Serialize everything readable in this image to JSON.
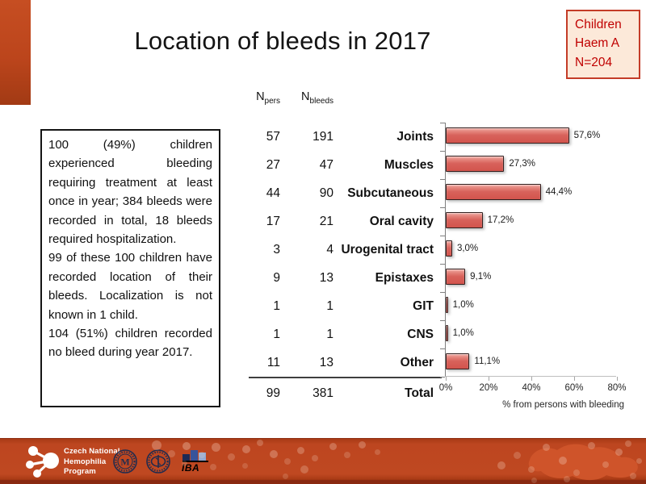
{
  "slide": {
    "title": "Location of bleeds in 2017",
    "badge": {
      "lines": [
        "Children",
        "Haem A",
        "N=204"
      ]
    },
    "info_box": {
      "paragraphs": [
        "100 (49%) children experienced bleeding requiring treatment at least once in year; 384 bleeds were recorded in total, 18 bleeds required hospitalization.",
        "99 of these 100 children have recorded location of their bleeds. Localization is not known in 1 child.",
        "104 (51%) children recorded no bleed during year 2017."
      ]
    }
  },
  "table": {
    "col1_base": "N",
    "col1_sub": "pers",
    "col2_base": "N",
    "col2_sub": "bleeds",
    "rows": [
      {
        "npers": "57",
        "nbleeds": "191",
        "label": "Joints"
      },
      {
        "npers": "27",
        "nbleeds": "47",
        "label": "Muscles"
      },
      {
        "npers": "44",
        "nbleeds": "90",
        "label": "Subcutaneous"
      },
      {
        "npers": "17",
        "nbleeds": "21",
        "label": "Oral cavity"
      },
      {
        "npers": "3",
        "nbleeds": "4",
        "label": "Urogenital tract"
      },
      {
        "npers": "9",
        "nbleeds": "13",
        "label": "Epistaxes"
      },
      {
        "npers": "1",
        "nbleeds": "1",
        "label": "GIT"
      },
      {
        "npers": "1",
        "nbleeds": "1",
        "label": "CNS"
      },
      {
        "npers": "11",
        "nbleeds": "13",
        "label": "Other"
      }
    ],
    "total": {
      "npers": "99",
      "nbleeds": "381",
      "label": "Total"
    }
  },
  "chart_data": {
    "type": "bar",
    "orientation": "horizontal",
    "categories": [
      "Joints",
      "Muscles",
      "Subcutaneous",
      "Oral cavity",
      "Urogenital tract",
      "Epistaxes",
      "GIT",
      "CNS",
      "Other"
    ],
    "values": [
      57.6,
      27.3,
      44.4,
      17.2,
      3.0,
      9.1,
      1.0,
      1.0,
      11.1
    ],
    "value_labels": [
      "57,6%",
      "27,3%",
      "44,4%",
      "17,2%",
      "3,0%",
      "9,1%",
      "1,0%",
      "1,0%",
      "11,1%"
    ],
    "xlabel": "% from persons with bleeding",
    "xlim": [
      0,
      80
    ],
    "xticks": [
      0,
      20,
      40,
      60,
      80
    ],
    "xtick_labels": [
      "0%",
      "20%",
      "40%",
      "60%",
      "80%"
    ],
    "grid": false,
    "legend": "none",
    "bar_color": "#d8625b",
    "bar_border_color": "#33201f"
  },
  "footer": {
    "program_lines": [
      "Czech National",
      "Hemophilia",
      "Program"
    ],
    "iba_label": "IBA"
  },
  "colors": {
    "accent_red": "#bc451c",
    "footer_red": "#bf4821",
    "badge_bg": "#fce9d9",
    "badge_border": "#c43c28",
    "badge_text": "#c00000"
  }
}
